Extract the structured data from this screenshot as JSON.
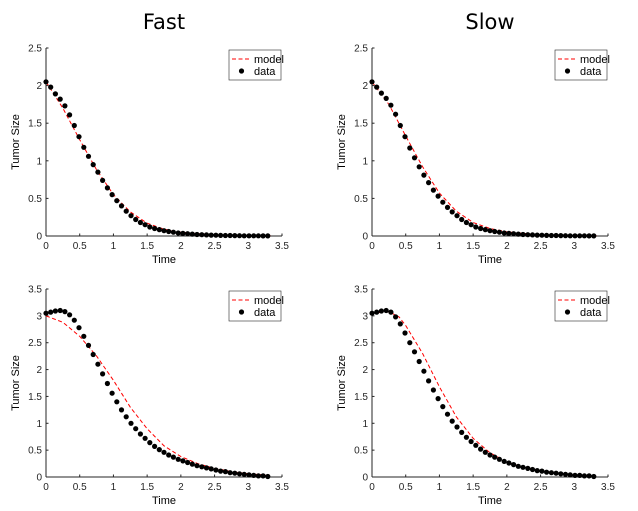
{
  "chart_data": [
    {
      "type": "line",
      "title": "Fast",
      "xlabel": "Time",
      "ylabel": "Tumor Size",
      "xlim": [
        0,
        3.5
      ],
      "ylim": [
        0,
        2.5
      ],
      "xticks": [
        "0",
        "0.5",
        "1",
        "1.5",
        "2",
        "2.5",
        "3",
        "3.5"
      ],
      "yticks": [
        "0",
        "0.5",
        "1",
        "1.5",
        "2",
        "2.5"
      ],
      "legend_placement": "top-right",
      "series": [
        {
          "name": "model",
          "style": "dashed",
          "color": "#ff0000",
          "x": [
            0,
            0.25,
            0.5,
            0.75,
            1.0,
            1.25,
            1.5,
            1.75,
            2.0,
            2.5,
            3.0,
            3.33
          ],
          "y": [
            2.05,
            1.7,
            1.28,
            0.88,
            0.55,
            0.32,
            0.17,
            0.09,
            0.05,
            0.015,
            0.005,
            0.002
          ]
        },
        {
          "name": "data",
          "style": "markers",
          "color": "#000000",
          "x": [
            0,
            0.07,
            0.14,
            0.21,
            0.28,
            0.35,
            0.42,
            0.49,
            0.56,
            0.63,
            0.7,
            0.77,
            0.84,
            0.91,
            0.98,
            1.05,
            1.12,
            1.19,
            1.26,
            1.33,
            1.4,
            1.47,
            1.54,
            1.61,
            1.68,
            1.75,
            1.82,
            1.89,
            1.96,
            2.03,
            2.1,
            2.17,
            2.24,
            2.31,
            2.38,
            2.45,
            2.52,
            2.59,
            2.66,
            2.73,
            2.8,
            2.87,
            2.94,
            3.01,
            3.08,
            3.15,
            3.22,
            3.29
          ],
          "y": [
            2.05,
            1.98,
            1.89,
            1.82,
            1.73,
            1.61,
            1.47,
            1.32,
            1.18,
            1.06,
            0.95,
            0.85,
            0.74,
            0.64,
            0.55,
            0.47,
            0.4,
            0.33,
            0.27,
            0.22,
            0.18,
            0.15,
            0.12,
            0.1,
            0.085,
            0.07,
            0.06,
            0.05,
            0.04,
            0.035,
            0.03,
            0.025,
            0.02,
            0.017,
            0.014,
            0.012,
            0.01,
            0.008,
            0.007,
            0.006,
            0.005,
            0.004,
            0.003,
            0.003,
            0.002,
            0.002,
            0.001,
            0.001
          ]
        }
      ]
    },
    {
      "type": "line",
      "title": "Slow",
      "xlabel": "Time",
      "ylabel": "Tumor Size",
      "xlim": [
        0,
        3.5
      ],
      "ylim": [
        0,
        2.5
      ],
      "xticks": [
        "0",
        "0.5",
        "1",
        "1.5",
        "2",
        "2.5",
        "3",
        "3.5"
      ],
      "yticks": [
        "0",
        "0.5",
        "1",
        "1.5",
        "2",
        "2.5"
      ],
      "legend_placement": "top-right",
      "series": [
        {
          "name": "model",
          "style": "dashed",
          "color": "#ff0000",
          "x": [
            0,
            0.25,
            0.5,
            0.75,
            1.0,
            1.25,
            1.5,
            1.75,
            2.0,
            2.5,
            3.0,
            3.33
          ],
          "y": [
            2.05,
            1.75,
            1.33,
            0.92,
            0.57,
            0.33,
            0.18,
            0.1,
            0.055,
            0.015,
            0.005,
            0.002
          ]
        },
        {
          "name": "data",
          "style": "markers",
          "color": "#000000",
          "x": [
            0,
            0.07,
            0.14,
            0.21,
            0.28,
            0.35,
            0.42,
            0.49,
            0.56,
            0.63,
            0.7,
            0.77,
            0.84,
            0.91,
            0.98,
            1.05,
            1.12,
            1.19,
            1.26,
            1.33,
            1.4,
            1.47,
            1.54,
            1.61,
            1.68,
            1.75,
            1.82,
            1.89,
            1.96,
            2.03,
            2.1,
            2.17,
            2.24,
            2.31,
            2.38,
            2.45,
            2.52,
            2.59,
            2.66,
            2.73,
            2.8,
            2.87,
            2.94,
            3.01,
            3.08,
            3.15,
            3.22,
            3.29
          ],
          "y": [
            2.05,
            1.98,
            1.9,
            1.83,
            1.74,
            1.62,
            1.47,
            1.32,
            1.17,
            1.04,
            0.92,
            0.81,
            0.71,
            0.61,
            0.53,
            0.45,
            0.38,
            0.32,
            0.27,
            0.22,
            0.18,
            0.15,
            0.12,
            0.1,
            0.085,
            0.07,
            0.06,
            0.05,
            0.04,
            0.035,
            0.03,
            0.025,
            0.02,
            0.017,
            0.014,
            0.012,
            0.01,
            0.008,
            0.007,
            0.006,
            0.005,
            0.004,
            0.003,
            0.003,
            0.002,
            0.002,
            0.001,
            0.001
          ]
        }
      ]
    },
    {
      "type": "line",
      "title": "",
      "xlabel": "Time",
      "ylabel": "Tumor Size",
      "xlim": [
        0,
        3.5
      ],
      "ylim": [
        0,
        3.5
      ],
      "xticks": [
        "0",
        "0.5",
        "1",
        "1.5",
        "2",
        "2.5",
        "3",
        "3.5"
      ],
      "yticks": [
        "0",
        "0.5",
        "1",
        "1.5",
        "2",
        "2.5",
        "3",
        "3.5"
      ],
      "legend_placement": "top-right",
      "series": [
        {
          "name": "model",
          "style": "dashed",
          "color": "#ff0000",
          "x": [
            0,
            0.25,
            0.5,
            0.75,
            1.0,
            1.25,
            1.5,
            1.75,
            2.0,
            2.25,
            2.5,
            2.75,
            3.0,
            3.33
          ],
          "y": [
            3.0,
            2.88,
            2.62,
            2.25,
            1.8,
            1.3,
            0.9,
            0.58,
            0.38,
            0.25,
            0.16,
            0.1,
            0.06,
            0.03
          ]
        },
        {
          "name": "data",
          "style": "markers",
          "color": "#000000",
          "x": [
            0,
            0.07,
            0.14,
            0.21,
            0.28,
            0.35,
            0.42,
            0.49,
            0.56,
            0.63,
            0.7,
            0.77,
            0.84,
            0.91,
            0.98,
            1.05,
            1.12,
            1.19,
            1.26,
            1.33,
            1.4,
            1.47,
            1.54,
            1.61,
            1.68,
            1.75,
            1.82,
            1.89,
            1.96,
            2.03,
            2.1,
            2.17,
            2.24,
            2.31,
            2.38,
            2.45,
            2.52,
            2.59,
            2.66,
            2.73,
            2.8,
            2.87,
            2.94,
            3.01,
            3.08,
            3.15,
            3.22,
            3.29
          ],
          "y": [
            3.05,
            3.07,
            3.09,
            3.1,
            3.08,
            3.02,
            2.92,
            2.78,
            2.62,
            2.45,
            2.28,
            2.1,
            1.92,
            1.74,
            1.56,
            1.4,
            1.25,
            1.12,
            1.0,
            0.9,
            0.8,
            0.72,
            0.64,
            0.57,
            0.51,
            0.46,
            0.41,
            0.37,
            0.33,
            0.3,
            0.27,
            0.24,
            0.21,
            0.19,
            0.17,
            0.15,
            0.13,
            0.11,
            0.1,
            0.08,
            0.07,
            0.06,
            0.05,
            0.04,
            0.03,
            0.02,
            0.02,
            0.01
          ]
        }
      ]
    },
    {
      "type": "line",
      "title": "",
      "xlabel": "Time",
      "ylabel": "Tumor Size",
      "xlim": [
        0,
        3.5
      ],
      "ylim": [
        0,
        3.5
      ],
      "xticks": [
        "0",
        "0.5",
        "1",
        "1.5",
        "2",
        "2.5",
        "3",
        "3.5"
      ],
      "yticks": [
        "0",
        "0.5",
        "1",
        "1.5",
        "2",
        "2.5",
        "3",
        "3.5"
      ],
      "legend_placement": "top-right",
      "series": [
        {
          "name": "model",
          "style": "dashed",
          "color": "#ff0000",
          "x": [
            0,
            0.25,
            0.4,
            0.5,
            0.75,
            1.0,
            1.25,
            1.5,
            1.75,
            2.0,
            2.25,
            2.5,
            2.75,
            3.0,
            3.33
          ],
          "y": [
            3.05,
            3.08,
            2.98,
            2.82,
            2.3,
            1.68,
            1.12,
            0.72,
            0.45,
            0.28,
            0.18,
            0.12,
            0.07,
            0.04,
            0.02
          ]
        },
        {
          "name": "data",
          "style": "markers",
          "color": "#000000",
          "x": [
            0,
            0.07,
            0.14,
            0.21,
            0.28,
            0.35,
            0.42,
            0.49,
            0.56,
            0.63,
            0.7,
            0.77,
            0.84,
            0.91,
            0.98,
            1.05,
            1.12,
            1.19,
            1.26,
            1.33,
            1.4,
            1.47,
            1.54,
            1.61,
            1.68,
            1.75,
            1.82,
            1.89,
            1.96,
            2.03,
            2.1,
            2.17,
            2.24,
            2.31,
            2.38,
            2.45,
            2.52,
            2.59,
            2.66,
            2.73,
            2.8,
            2.87,
            2.94,
            3.01,
            3.08,
            3.15,
            3.22,
            3.29
          ],
          "y": [
            3.05,
            3.07,
            3.09,
            3.1,
            3.07,
            2.98,
            2.85,
            2.68,
            2.5,
            2.33,
            2.15,
            1.97,
            1.79,
            1.62,
            1.46,
            1.31,
            1.17,
            1.04,
            0.93,
            0.83,
            0.74,
            0.66,
            0.59,
            0.52,
            0.46,
            0.41,
            0.37,
            0.33,
            0.29,
            0.26,
            0.23,
            0.2,
            0.18,
            0.16,
            0.14,
            0.12,
            0.11,
            0.09,
            0.08,
            0.07,
            0.06,
            0.05,
            0.04,
            0.03,
            0.03,
            0.02,
            0.02,
            0.01
          ]
        }
      ]
    }
  ]
}
